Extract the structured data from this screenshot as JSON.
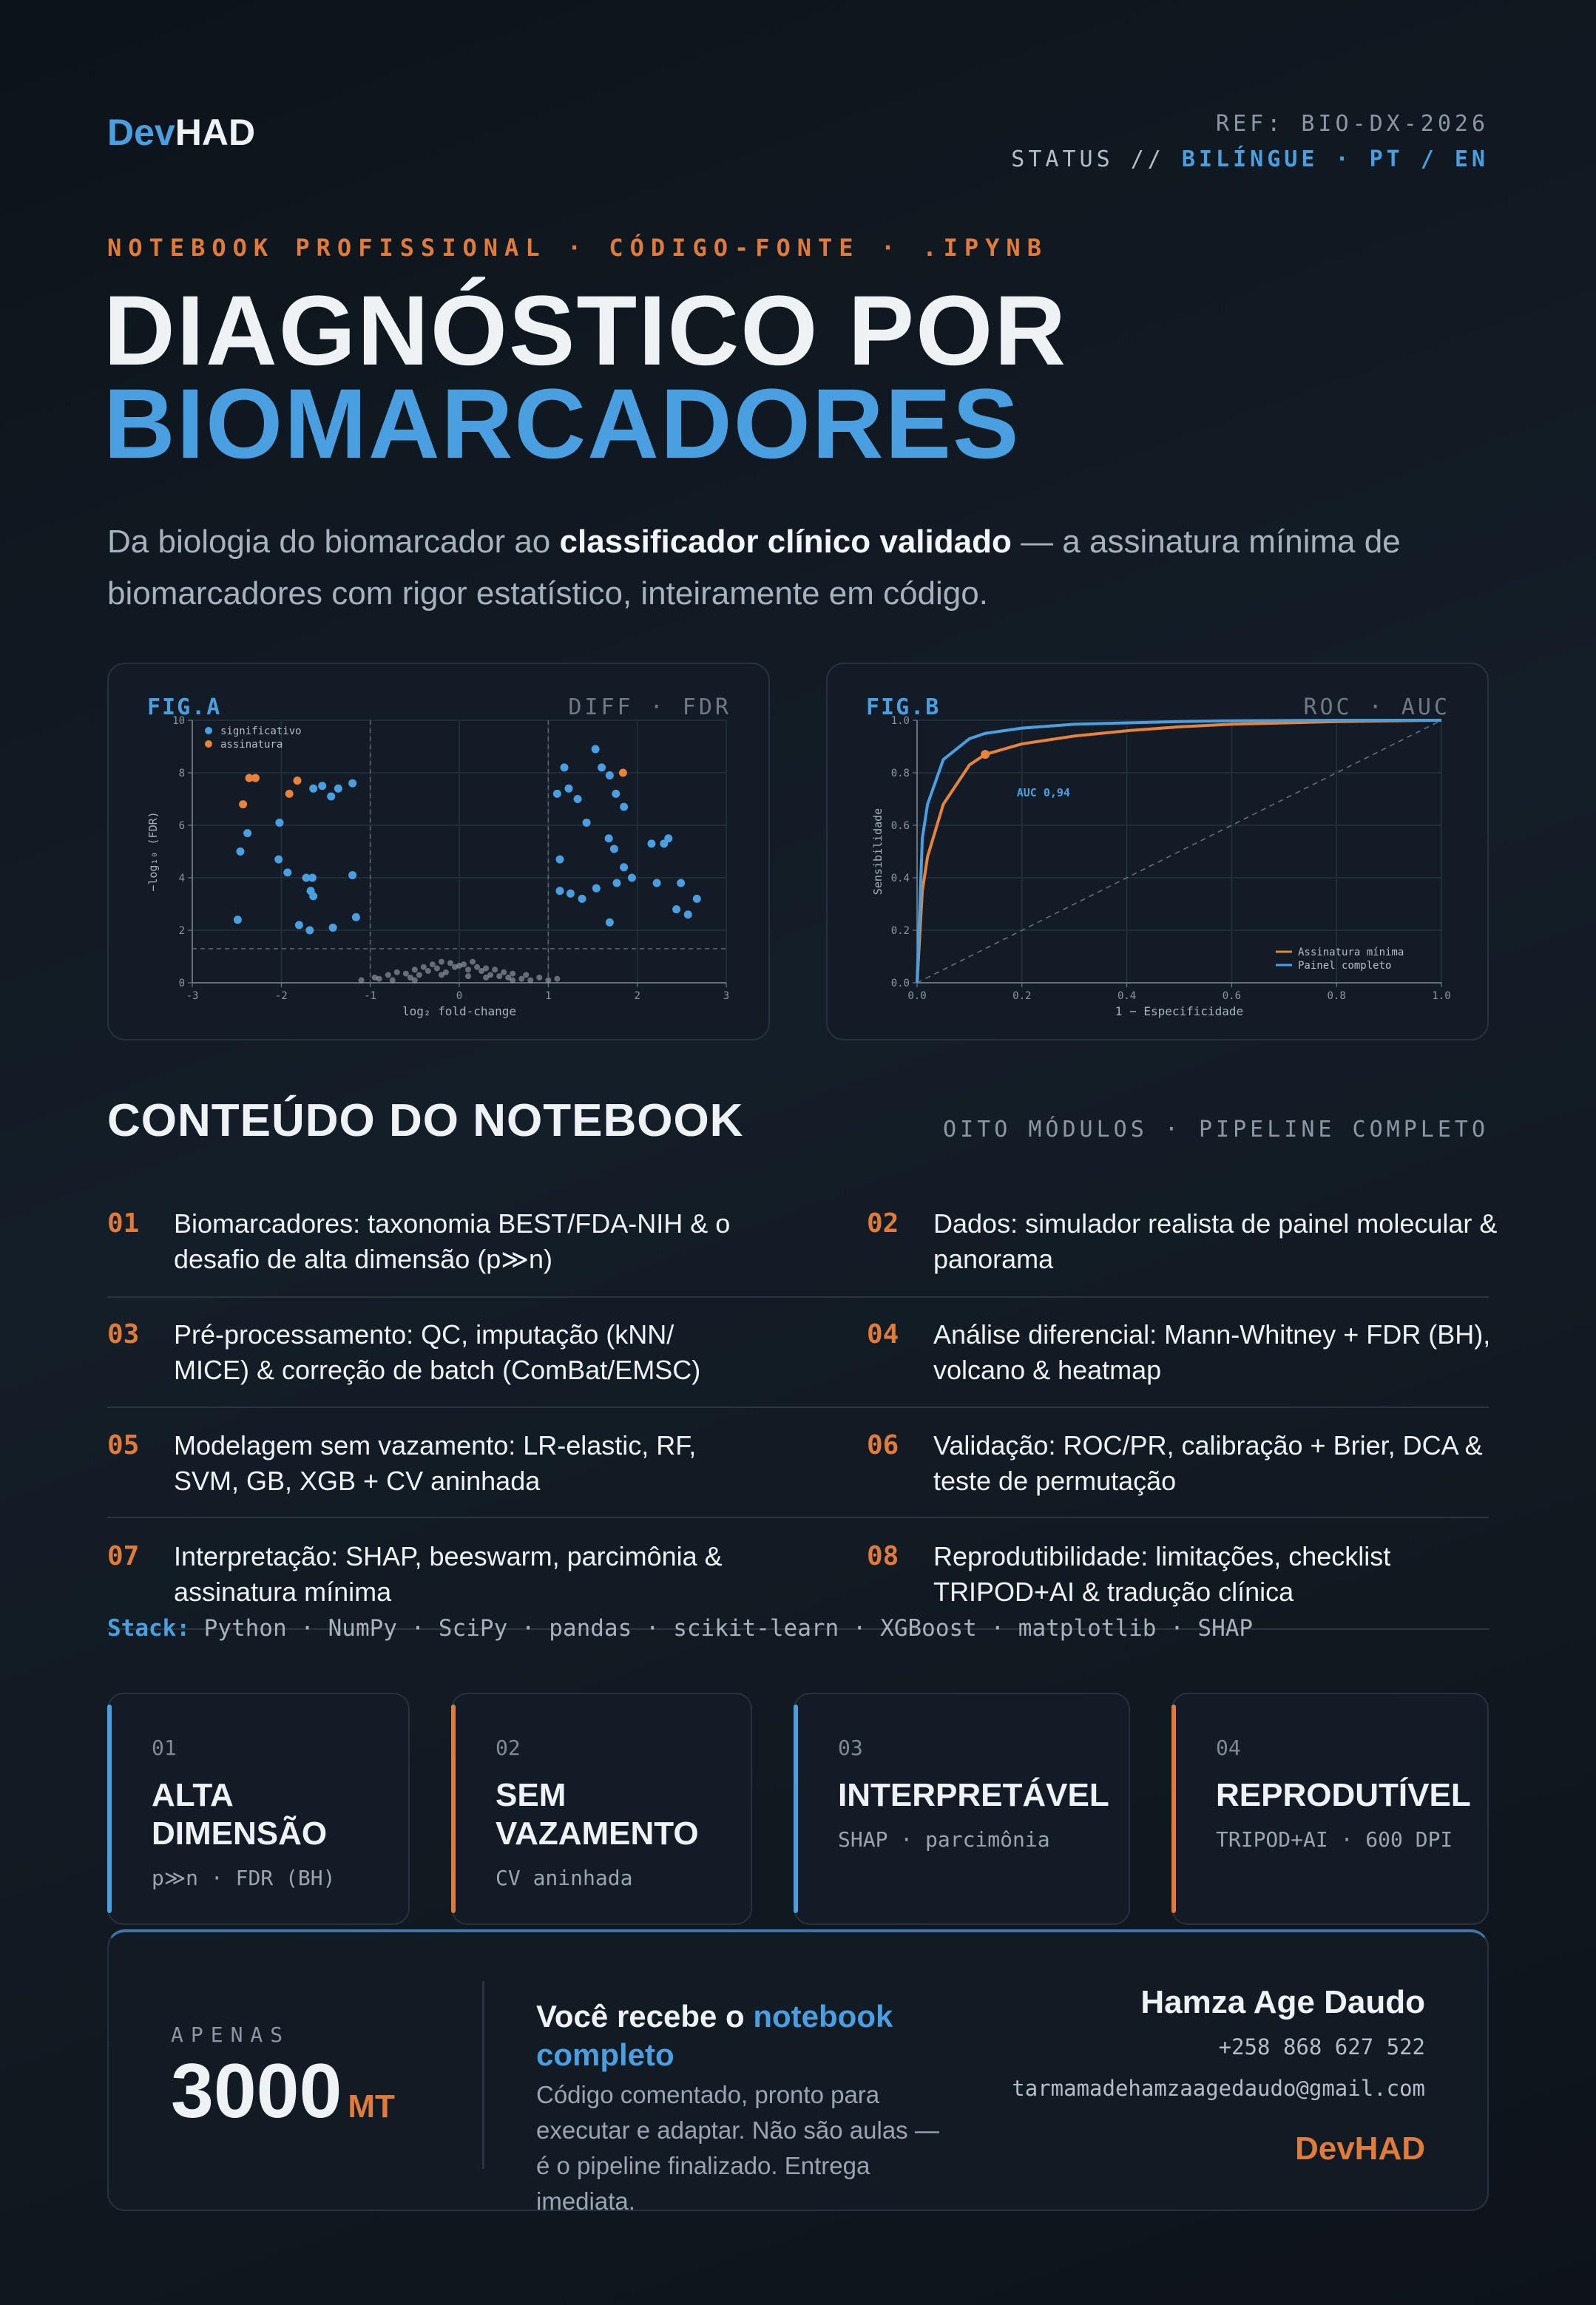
{
  "header": {
    "brand_a": "Dev",
    "brand_b": "HAD",
    "ref": "REF: BIO-DX-2026",
    "status_prefix": "STATUS //",
    "status_value": "BILÍNGUE · PT / EN"
  },
  "hero": {
    "kicker": "NOTEBOOK PROFISSIONAL · CÓDIGO-FONTE · .IPYNB",
    "title_1": "DIAGNÓSTICO POR",
    "title_2": "BIOMARCADORES",
    "lead_a": "Da biologia do biomarcador ao ",
    "lead_b": "classificador clínico validado",
    "lead_c": " — a assinatura mínima de biomarcadores com rigor estatístico, inteiramente em código."
  },
  "chart_data": [
    {
      "type": "scatter",
      "title": "FIG.A",
      "subtitle": "DIFF · FDR",
      "xlabel": "log₂ fold-change",
      "ylabel": "−log₁₀ (FDR)",
      "xlim": [
        -3,
        3
      ],
      "ylim": [
        0,
        10
      ],
      "xticks": [
        -3,
        -2,
        -1,
        0,
        1,
        2,
        3
      ],
      "yticks": [
        0,
        2,
        4,
        6,
        8,
        10
      ],
      "grid": true,
      "legend": "upper left",
      "fc_threshold": [
        -1,
        1
      ],
      "fdr_threshold": 1.3,
      "series": [
        {
          "color": "#aab3bd",
          "x": [
            -1.1,
            -0.95,
            -0.9,
            -0.8,
            -0.75,
            -0.7,
            -0.6,
            -0.55,
            -0.5,
            -0.45,
            -0.4,
            -0.35,
            -0.3,
            -0.25,
            -0.2,
            -0.15,
            -0.1,
            -0.05,
            0,
            0.05,
            0.1,
            0.15,
            0.2,
            0.25,
            0.3,
            0.35,
            0.4,
            0.45,
            0.5,
            0.55,
            0.6,
            0.7,
            0.75,
            0.8,
            0.9,
            1.0,
            1.1,
            -0.2,
            0.1,
            0.3,
            -0.5,
            0.6
          ],
          "y": [
            0.1,
            0.2,
            0.15,
            0.3,
            0.1,
            0.4,
            0.35,
            0.2,
            0.5,
            0.3,
            0.6,
            0.45,
            0.7,
            0.55,
            0.8,
            0.4,
            0.75,
            0.6,
            0.65,
            0.7,
            0.5,
            0.8,
            0.6,
            0.45,
            0.55,
            0.3,
            0.5,
            0.25,
            0.4,
            0.2,
            0.35,
            0.15,
            0.3,
            0.1,
            0.2,
            0.1,
            0.15,
            0.3,
            0.25,
            0.2,
            0.1,
            0.1
          ]
        },
        {
          "name": "significativo",
          "color": "#4a9fe0",
          "x": [
            -2.49,
            -2.46,
            -2.38,
            -2.02,
            -2.03,
            -1.93,
            -1.8,
            -1.72,
            -1.68,
            -1.64,
            -1.65,
            -1.67,
            -1.64,
            -1.54,
            -1.44,
            -1.36,
            -1.42,
            -1.2,
            -1.2,
            -1.16,
            1.1,
            1.18,
            1.23,
            1.33,
            1.43,
            1.53,
            1.6,
            1.69,
            1.76,
            1.68,
            1.74,
            1.13,
            1.13,
            1.25,
            1.38,
            1.54,
            1.69,
            1.77,
            1.85,
            1.94,
            2.16,
            2.22,
            2.3,
            2.35,
            2.44,
            2.49,
            2.57,
            2.67,
            1.85
          ],
          "y": [
            2.4,
            5.0,
            5.7,
            6.1,
            4.7,
            4.2,
            2.2,
            4.0,
            2.0,
            3.3,
            4.0,
            3.5,
            7.4,
            7.5,
            7.1,
            7.4,
            2.1,
            7.6,
            4.1,
            2.5,
            7.2,
            8.2,
            7.4,
            7.0,
            6.1,
            8.9,
            8.2,
            7.9,
            7.2,
            5.5,
            5.1,
            4.7,
            3.5,
            3.4,
            3.2,
            3.6,
            2.3,
            3.8,
            4.4,
            4.0,
            5.3,
            3.8,
            5.3,
            5.5,
            2.8,
            3.8,
            2.6,
            3.2,
            6.7
          ]
        },
        {
          "name": "assinatura",
          "color": "#e8833a",
          "x": [
            -2.43,
            -2.36,
            -2.29,
            -1.91,
            -1.82,
            1.84
          ],
          "y": [
            6.8,
            7.8,
            7.8,
            7.2,
            7.7,
            8.0
          ]
        }
      ]
    },
    {
      "type": "line",
      "title": "FIG.B",
      "subtitle": "ROC · AUC",
      "xlabel": "1 − Especificidade",
      "ylabel": "Sensibilidade",
      "xlim": [
        0,
        1
      ],
      "ylim": [
        0,
        1
      ],
      "xticks": [
        {
          "value": 0,
          "label": "0.0"
        },
        0.2,
        0.4,
        0.6,
        0.8,
        {
          "value": 1,
          "label": "1.0"
        }
      ],
      "yticks": [
        {
          "value": 0,
          "label": "0.0"
        },
        0.2,
        0.4,
        0.6,
        0.8,
        {
          "value": 1,
          "label": "1.0"
        }
      ],
      "grid": true,
      "legend": "lower right",
      "annotation": "AUC 0,94",
      "highlight": {
        "x": 0.13,
        "y": 0.87
      },
      "x": [
        0,
        0.01,
        0.02,
        0.05,
        0.1,
        0.13,
        0.2,
        0.3,
        0.4,
        0.5,
        0.6,
        0.8,
        1
      ],
      "series": [
        {
          "name": "Assinatura mínima",
          "color": "#e8833a",
          "values": [
            0,
            0.35,
            0.48,
            0.68,
            0.83,
            0.87,
            0.91,
            0.94,
            0.96,
            0.975,
            0.985,
            0.995,
            1
          ]
        },
        {
          "name": "Painel completo",
          "color": "#4a9fe0",
          "values": [
            0,
            0.55,
            0.68,
            0.85,
            0.93,
            0.95,
            0.97,
            0.985,
            0.99,
            0.995,
            0.998,
            1,
            1
          ]
        }
      ]
    }
  ],
  "contents": {
    "title": "CONTEÚDO DO NOTEBOOK",
    "tag": "OITO MÓDULOS · PIPELINE COMPLETO",
    "modules": [
      {
        "num": "01",
        "text": "Biomarcadores: taxonomia BEST/FDA-NIH & o desafio de alta dimensão (p≫n)"
      },
      {
        "num": "02",
        "text": "Dados: simulador realista de painel molecular & panorama"
      },
      {
        "num": "03",
        "text": "Pré-processamento: QC, imputação (kNN/ MICE) & correção de batch (ComBat/EMSC)"
      },
      {
        "num": "04",
        "text": "Análise diferencial: Mann-Whitney + FDR (BH), volcano & heatmap"
      },
      {
        "num": "05",
        "text": "Modelagem sem vazamento: LR-elastic, RF, SVM, GB, XGB + CV aninhada"
      },
      {
        "num": "06",
        "text": "Validação: ROC/PR, calibração + Brier, DCA & teste de permutação"
      },
      {
        "num": "07",
        "text": "Interpretação: SHAP, beeswarm, parcimônia & assinatura mínima"
      },
      {
        "num": "08",
        "text": "Reprodutibilidade: limitações, checklist TRIPOD+AI & tradução clínica"
      }
    ],
    "stack_label": "Stack:",
    "stack": "Python · NumPy · SciPy · pandas · scikit-learn · XGBoost · matplotlib · SHAP"
  },
  "features": [
    {
      "num": "01",
      "title": "ALTA DIMENSÃO",
      "sub": "p≫n · FDR (BH)",
      "color": "#4a9fe0"
    },
    {
      "num": "02",
      "title": "SEM VAZAMENTO",
      "sub": "CV aninhada",
      "color": "#e07b39"
    },
    {
      "num": "03",
      "title": "INTERPRETÁVEL",
      "sub": "SHAP · parcimônia",
      "color": "#4a9fe0"
    },
    {
      "num": "04",
      "title": "REPRODUTÍVEL",
      "sub": "TRIPOD+AI · 600 DPI",
      "color": "#e07b39"
    }
  ],
  "offer": {
    "price_label": "APENAS",
    "price": "3000",
    "currency": "MT",
    "pitch_a": "Você recebe o ",
    "pitch_b": "notebook completo",
    "desc": "Código comentado, pronto para executar e adaptar. Não são aulas — é o pipeline finalizado. Entrega imediata.",
    "name": "Hamza Age Daudo",
    "phone": "+258 868 627 522",
    "email": "tarmamadehamzaagedaudo@gmail.com",
    "brand": "DevHAD"
  }
}
